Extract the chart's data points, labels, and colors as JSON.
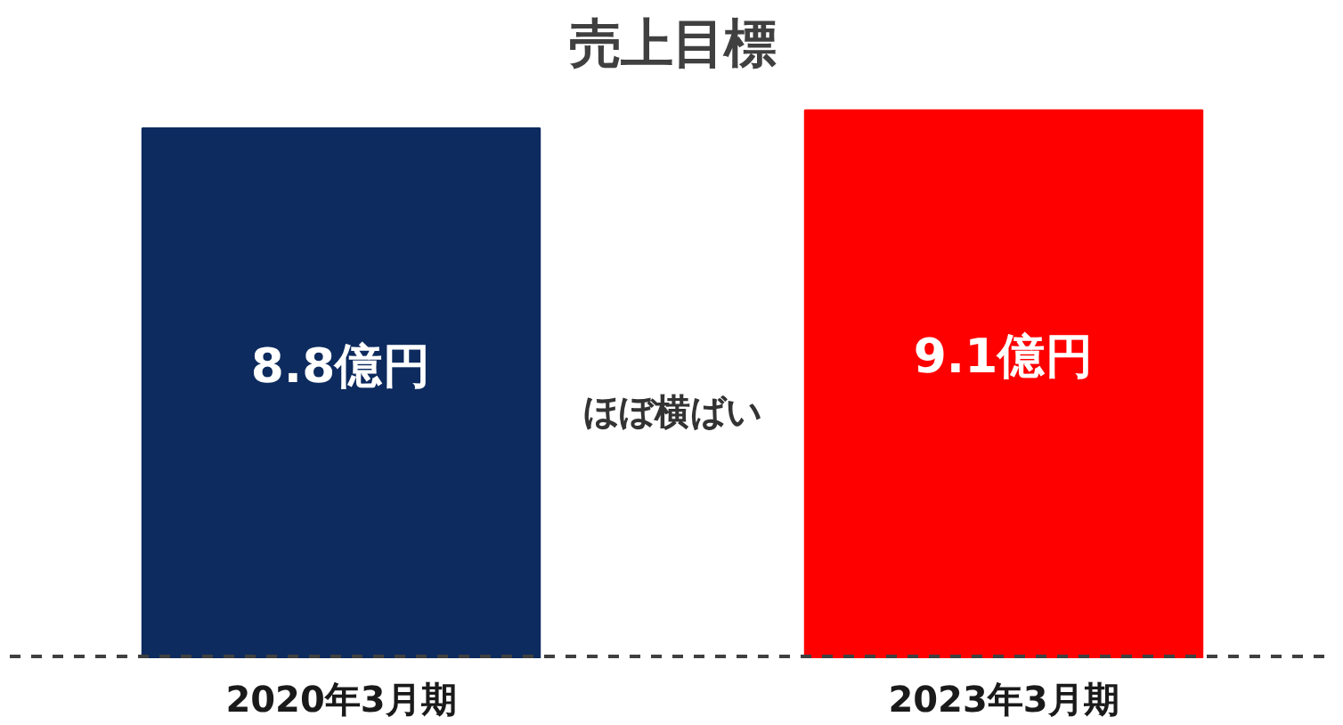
{
  "chart_data": {
    "type": "bar",
    "title": "売上目標",
    "categories": [
      "2020年3月期",
      "2023年3月期"
    ],
    "values": [
      8.8,
      9.1
    ],
    "colors": [
      "#0d2b5e",
      "#ff0000"
    ],
    "value_labels": [
      "8.8億円",
      "9.1億円"
    ],
    "tick_labels": "x",
    "ref_lines": [
      {
        "axis": "y",
        "value": 0,
        "color": "#404040",
        "line_style": "dashed"
      }
    ],
    "annotations": [
      "ほぼ横ばい"
    ]
  }
}
